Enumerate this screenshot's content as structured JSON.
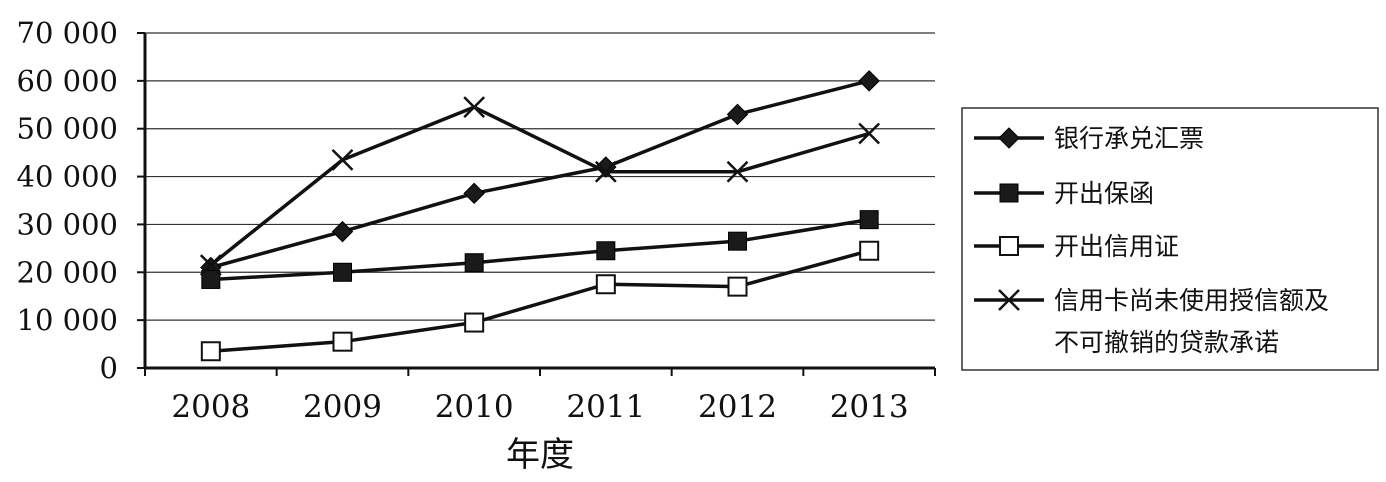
{
  "chart_data": {
    "type": "line",
    "xlabel": "年度",
    "ylabel": "",
    "categories": [
      "2008",
      "2009",
      "2010",
      "2011",
      "2012",
      "2013"
    ],
    "ylim": [
      0,
      70000
    ],
    "yticks": [
      0,
      10000,
      20000,
      30000,
      40000,
      50000,
      60000,
      70000
    ],
    "ytick_labels": [
      "0",
      "10 000",
      "20 000",
      "30 000",
      "40 000",
      "50 000",
      "60 000",
      "70 000"
    ],
    "grid": true,
    "legend_position": "right",
    "series": [
      {
        "name": "银行承兑汇票",
        "marker": "diamond",
        "values": [
          21000,
          28500,
          36500,
          42000,
          53000,
          60000
        ]
      },
      {
        "name": "开出保函",
        "marker": "square-filled",
        "values": [
          18500,
          20000,
          22000,
          24500,
          26500,
          31000
        ]
      },
      {
        "name": "开出信用证",
        "marker": "square-open",
        "values": [
          3500,
          5500,
          9500,
          17500,
          17000,
          24500
        ]
      },
      {
        "name": "信用卡尚未使用授信额及不可撤销的贷款承诺",
        "name_lines": [
          "信用卡尚未使用授信额及",
          "不可撤销的贷款承诺"
        ],
        "marker": "x",
        "values": [
          21500,
          43500,
          54500,
          41000,
          41000,
          49000
        ]
      }
    ],
    "colors": {
      "line": "#111111",
      "grid": "#333333",
      "marker_fill": "#1a1a1a"
    }
  }
}
